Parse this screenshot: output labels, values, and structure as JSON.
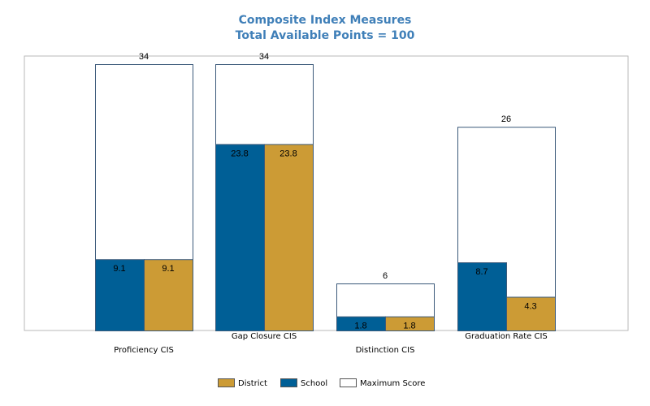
{
  "colors": {
    "school": "#005f96",
    "district": "#cc9b35",
    "max_fill": "#ffffff",
    "max_stroke": "#3c5a7a",
    "title": "#3f7fb8"
  },
  "chart_data": {
    "type": "bar",
    "title": "Composite Index Measures",
    "subtitle": "Total Available Points = 100",
    "categories": [
      "Proficiency CIS",
      "Gap Closure CIS",
      "Distinction CIS",
      "Graduation Rate CIS"
    ],
    "series": [
      {
        "name": "School",
        "values": [
          9.1,
          23.8,
          1.8,
          8.7
        ]
      },
      {
        "name": "District",
        "values": [
          9.1,
          23.8,
          1.8,
          4.3
        ]
      },
      {
        "name": "Maximum Score",
        "values": [
          34,
          34,
          6,
          26
        ]
      }
    ],
    "legend": {
      "position": "bottom",
      "items": [
        "District",
        "School",
        "Maximum Score"
      ]
    },
    "ylim": [
      0,
      36
    ],
    "grid": false
  }
}
